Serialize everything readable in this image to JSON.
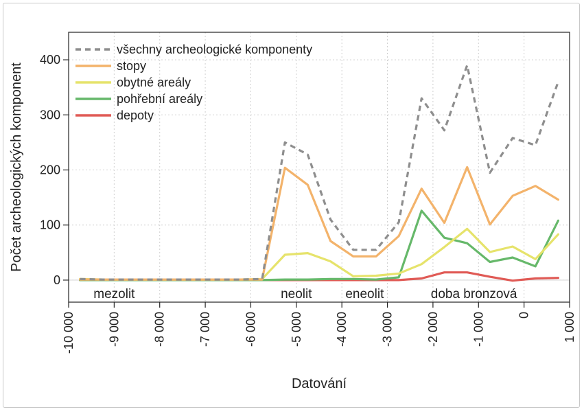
{
  "chart_data": {
    "type": "line",
    "title": "",
    "xlabel": "Datování",
    "ylabel": "Počet archeologických komponent",
    "xlim": [
      -10000,
      1000
    ],
    "ylim": [
      -40,
      450
    ],
    "x_ticks": [
      -10000,
      -9000,
      -8000,
      -7000,
      -6000,
      -5000,
      -4000,
      -3000,
      -2000,
      -1000,
      0,
      1000
    ],
    "x_tick_labels": [
      "-10 000",
      "-9 000",
      "-8 000",
      "-7 000",
      "-6 000",
      "-5 000",
      "-4 000",
      "-3 000",
      "-2 000",
      "-1 000",
      "0",
      "1 000"
    ],
    "y_ticks": [
      0,
      100,
      200,
      300,
      400
    ],
    "y_tick_labels": [
      "0",
      "100",
      "200",
      "300",
      "400"
    ],
    "grid": true,
    "legend_position": "top-left",
    "period_labels": [
      {
        "text": "mezolit",
        "x": -9000
      },
      {
        "text": "neolit",
        "x": -5000
      },
      {
        "text": "eneolit",
        "x": -3500
      },
      {
        "text": "doba bronzová",
        "x": -1100
      }
    ],
    "x": [
      -9750,
      -9250,
      -8750,
      -8250,
      -7750,
      -7250,
      -6750,
      -6250,
      -5750,
      -5250,
      -4750,
      -4250,
      -3750,
      -3250,
      -2750,
      -2250,
      -1750,
      -1250,
      -750,
      -250,
      250,
      750
    ],
    "series": [
      {
        "name": "všechny archeologické komponenty",
        "color": "#8e8e8e",
        "dash": true,
        "values": [
          2,
          1,
          1,
          1,
          1,
          1,
          1,
          1,
          2,
          250,
          228,
          110,
          55,
          55,
          105,
          330,
          272,
          390,
          195,
          258,
          245,
          360
        ]
      },
      {
        "name": "stopy",
        "color": "#f3b36b",
        "dash": false,
        "values": [
          1,
          1,
          1,
          1,
          1,
          1,
          1,
          1,
          1,
          204,
          173,
          71,
          43,
          43,
          80,
          166,
          104,
          205,
          101,
          153,
          171,
          146
        ]
      },
      {
        "name": "obytné areály",
        "color": "#e6e36b",
        "dash": false,
        "values": [
          2,
          1,
          1,
          1,
          1,
          1,
          1,
          1,
          2,
          46,
          49,
          34,
          7,
          8,
          12,
          29,
          60,
          93,
          51,
          61,
          38,
          83
        ]
      },
      {
        "name": "pohřební areály",
        "color": "#66b86a",
        "dash": false,
        "values": [
          0,
          0,
          0,
          0,
          0,
          0,
          0,
          0,
          0,
          1,
          1,
          2,
          2,
          1,
          5,
          126,
          77,
          67,
          33,
          41,
          25,
          108
        ]
      },
      {
        "name": "depoty",
        "color": "#e05a55",
        "dash": false,
        "values": [
          0,
          0,
          0,
          0,
          0,
          0,
          0,
          0,
          0,
          0,
          0,
          0,
          0,
          0,
          0,
          3,
          14,
          14,
          6,
          -1,
          3,
          4
        ]
      }
    ]
  }
}
